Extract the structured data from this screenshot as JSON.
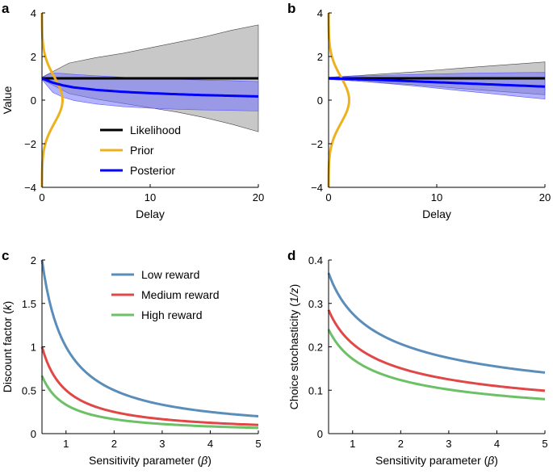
{
  "chart_data": [
    {
      "panel": "a",
      "type": "line",
      "xlabel": "Delay",
      "ylabel": "Value",
      "xlim": [
        0,
        20
      ],
      "ylim": [
        -4,
        4
      ],
      "xticks": [
        0,
        10,
        20
      ],
      "yticks": [
        -4,
        -2,
        0,
        2,
        4
      ],
      "series": [
        {
          "name": "Likelihood",
          "color": "#000000",
          "x": [
            0,
            20
          ],
          "y": [
            1,
            1
          ],
          "band": {
            "x": [
              0,
              2.5,
              5,
              7.5,
              10,
              12.5,
              15,
              17.5,
              20
            ],
            "lower": [
              0.95,
              0.3,
              0.05,
              -0.15,
              -0.35,
              -0.55,
              -0.8,
              -1.1,
              -1.45
            ],
            "upper": [
              1.05,
              1.7,
              1.95,
              2.15,
              2.4,
              2.65,
              2.9,
              3.2,
              3.45
            ],
            "color": "#c8c8c8"
          }
        },
        {
          "name": "Prior",
          "color": "#EDB120",
          "kind": "vertical-gaussian",
          "mean": 0,
          "sd": 1.05,
          "amplitude": 1.9
        },
        {
          "name": "Posterior",
          "color": "#0000FF",
          "x": [
            0,
            1,
            2,
            3,
            5,
            7.5,
            10,
            12.5,
            15,
            17.5,
            20
          ],
          "y": [
            1.0,
            0.8,
            0.67,
            0.58,
            0.47,
            0.38,
            0.32,
            0.27,
            0.23,
            0.2,
            0.17
          ],
          "band": {
            "x": [
              0,
              1,
              2,
              3,
              5,
              7.5,
              10,
              12.5,
              15,
              17.5,
              20
            ],
            "lower": [
              0.95,
              0.35,
              0.12,
              -0.02,
              -0.18,
              -0.3,
              -0.37,
              -0.42,
              -0.45,
              -0.47,
              -0.5
            ],
            "upper": [
              1.05,
              1.25,
              1.22,
              1.18,
              1.12,
              1.05,
              1.0,
              0.96,
              0.92,
              0.89,
              0.85
            ],
            "color": "#7272ff"
          }
        }
      ],
      "legend": {
        "placement": "center",
        "entries": [
          "Likelihood",
          "Prior",
          "Posterior"
        ]
      }
    },
    {
      "panel": "b",
      "type": "line",
      "xlabel": "Delay",
      "xlim": [
        0,
        20
      ],
      "ylim": [
        -4,
        4
      ],
      "xticks": [
        0,
        10,
        20
      ],
      "yticks": [
        -4,
        -2,
        0,
        2,
        4
      ],
      "series": [
        {
          "name": "Likelihood",
          "color": "#000000",
          "x": [
            0,
            20
          ],
          "y": [
            1,
            1
          ],
          "band": {
            "x": [
              0,
              2.5,
              5,
              7.5,
              10,
              12.5,
              15,
              17.5,
              20
            ],
            "lower": [
              0.95,
              0.88,
              0.8,
              0.72,
              0.62,
              0.52,
              0.43,
              0.34,
              0.25
            ],
            "upper": [
              1.05,
              1.12,
              1.2,
              1.28,
              1.38,
              1.48,
              1.57,
              1.66,
              1.75
            ],
            "color": "#c8c8c8"
          }
        },
        {
          "name": "Prior",
          "color": "#EDB120",
          "kind": "vertical-gaussian",
          "mean": 0,
          "sd": 1.05,
          "amplitude": 1.9
        },
        {
          "name": "Posterior",
          "color": "#0000FF",
          "x": [
            0,
            2.5,
            5,
            7.5,
            10,
            12.5,
            15,
            17.5,
            20
          ],
          "y": [
            1.0,
            0.96,
            0.92,
            0.87,
            0.82,
            0.77,
            0.72,
            0.67,
            0.62
          ],
          "band": {
            "x": [
              0,
              2.5,
              5,
              7.5,
              10,
              12.5,
              15,
              17.5,
              20
            ],
            "lower": [
              0.95,
              0.88,
              0.78,
              0.67,
              0.55,
              0.42,
              0.3,
              0.17,
              0.05
            ],
            "upper": [
              1.05,
              1.1,
              1.14,
              1.17,
              1.2,
              1.23,
              1.25,
              1.26,
              1.27
            ],
            "color": "#7272ff"
          }
        }
      ]
    },
    {
      "panel": "c",
      "type": "line",
      "xlabel": "Sensitivity parameter (β)",
      "ylabel": "Discount factor (k)",
      "xlim": [
        0.5,
        5
      ],
      "ylim": [
        0,
        2
      ],
      "xticks": [
        1,
        2,
        3,
        4,
        5
      ],
      "yticks": [
        0,
        0.5,
        1,
        1.5,
        2
      ],
      "series": [
        {
          "name": "Low reward",
          "color": "#5b8dba",
          "formula": "1/x",
          "x": [
            0.5,
            0.6,
            0.75,
            1,
            1.5,
            2,
            2.5,
            3,
            3.5,
            4,
            4.5,
            5
          ],
          "y": [
            2.0,
            1.667,
            1.333,
            1.0,
            0.667,
            0.5,
            0.4,
            0.333,
            0.286,
            0.25,
            0.222,
            0.2
          ]
        },
        {
          "name": "Medium reward",
          "color": "#e04848",
          "formula": "0.5/x",
          "x": [
            0.5,
            0.6,
            0.75,
            1,
            1.5,
            2,
            2.5,
            3,
            3.5,
            4,
            4.5,
            5
          ],
          "y": [
            1.0,
            0.833,
            0.667,
            0.5,
            0.333,
            0.25,
            0.2,
            0.167,
            0.143,
            0.125,
            0.111,
            0.1
          ]
        },
        {
          "name": "High reward",
          "color": "#6cc065",
          "formula": "0.333/x",
          "x": [
            0.5,
            0.6,
            0.75,
            1,
            1.5,
            2,
            2.5,
            3,
            3.5,
            4,
            4.5,
            5
          ],
          "y": [
            0.667,
            0.556,
            0.444,
            0.333,
            0.222,
            0.167,
            0.133,
            0.111,
            0.095,
            0.083,
            0.074,
            0.067
          ]
        }
      ],
      "legend": {
        "placement": "top-right",
        "entries": [
          "Low reward",
          "Medium reward",
          "High reward"
        ]
      }
    },
    {
      "panel": "d",
      "type": "line",
      "xlabel": "Sensitivity parameter (β)",
      "ylabel": "Choice stochasticity (1/z)",
      "xlim": [
        0.5,
        5
      ],
      "ylim": [
        0,
        0.4
      ],
      "xticks": [
        1,
        2,
        3,
        4,
        5
      ],
      "yticks": [
        0,
        0.1,
        0.2,
        0.3,
        0.4
      ],
      "series": [
        {
          "name": "Low reward",
          "color": "#5b8dba",
          "formula": "0.37*(0.5/x)^0.42",
          "x": [
            0.5,
            0.75,
            1,
            1.5,
            2,
            2.5,
            3,
            3.5,
            4,
            4.5,
            5
          ],
          "y": [
            0.37,
            0.313,
            0.277,
            0.233,
            0.207,
            0.189,
            0.175,
            0.164,
            0.155,
            0.147,
            0.14
          ]
        },
        {
          "name": "Medium reward",
          "color": "#e04848",
          "formula": "0.285*(0.5/x)^0.46",
          "x": [
            0.5,
            0.75,
            1,
            1.5,
            2,
            2.5,
            3,
            3.5,
            4,
            4.5,
            5
          ],
          "y": [
            0.285,
            0.236,
            0.208,
            0.172,
            0.151,
            0.136,
            0.125,
            0.117,
            0.11,
            0.104,
            0.099
          ]
        },
        {
          "name": "High reward",
          "color": "#6cc065",
          "formula": "0.24*(0.5/x)^0.48",
          "x": [
            0.5,
            0.75,
            1,
            1.5,
            2,
            2.5,
            3,
            3.5,
            4,
            4.5,
            5
          ],
          "y": [
            0.24,
            0.197,
            0.172,
            0.142,
            0.124,
            0.111,
            0.102,
            0.095,
            0.089,
            0.084,
            0.08
          ]
        }
      ]
    }
  ]
}
